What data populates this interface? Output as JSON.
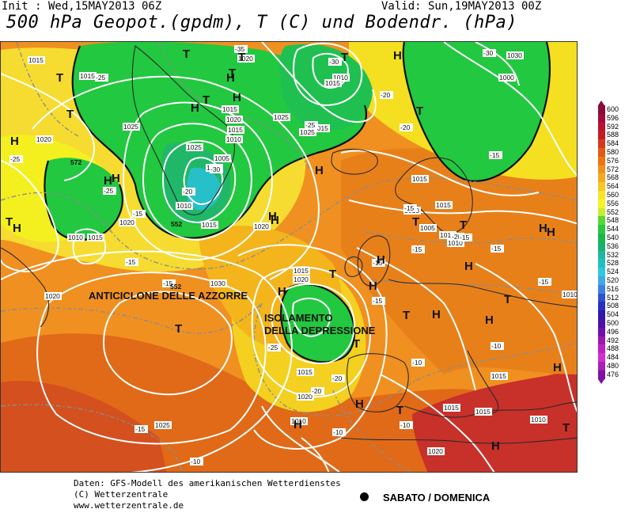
{
  "header": {
    "init": "Init : Wed,15MAY2013 06Z",
    "valid": "Valid: Sun,19MAY2013 00Z",
    "title": "500 hPa Geopot.(gpdm), T (C) und Bodendr. (hPa)"
  },
  "colors": {
    "sea_warm": "#f07814",
    "orange": "#f5a01c",
    "yellow": "#f5f000",
    "light_yellow": "#f8e060",
    "green": "#20c838",
    "green_dark": "#18b030",
    "cyan": "#20c0d8",
    "red": "#d24a1e",
    "deep_red": "#b81a2a",
    "isobar": "#ffffff",
    "coast": "#2a2a2a"
  },
  "legend": {
    "units": "gpdm",
    "levels": [
      {
        "value": "600",
        "color": "#8a0a3a"
      },
      {
        "value": "596",
        "color": "#a00c3c"
      },
      {
        "value": "592",
        "color": "#b8122e"
      },
      {
        "value": "588",
        "color": "#c41c22"
      },
      {
        "value": "584",
        "color": "#d23a1a"
      },
      {
        "value": "580",
        "color": "#e05a14"
      },
      {
        "value": "576",
        "color": "#ec7414"
      },
      {
        "value": "572",
        "color": "#f0901a"
      },
      {
        "value": "568",
        "color": "#f4aa1e"
      },
      {
        "value": "564",
        "color": "#f6c820"
      },
      {
        "value": "560",
        "color": "#f8e428"
      },
      {
        "value": "556",
        "color": "#f4f428"
      },
      {
        "value": "552",
        "color": "#c8ec30"
      },
      {
        "value": "548",
        "color": "#58d838"
      },
      {
        "value": "544",
        "color": "#28c840"
      },
      {
        "value": "540",
        "color": "#18b848"
      },
      {
        "value": "536",
        "color": "#18b070"
      },
      {
        "value": "532",
        "color": "#20b89c"
      },
      {
        "value": "528",
        "color": "#20c0c0"
      },
      {
        "value": "524",
        "color": "#30c8dc"
      },
      {
        "value": "520",
        "color": "#40a8e8"
      },
      {
        "value": "516",
        "color": "#3c80e0"
      },
      {
        "value": "512",
        "color": "#3050d0"
      },
      {
        "value": "508",
        "color": "#2830c0"
      },
      {
        "value": "504",
        "color": "#3018a8"
      },
      {
        "value": "500",
        "color": "#4c10a4"
      },
      {
        "value": "496",
        "color": "#7010a8"
      },
      {
        "value": "492",
        "color": "#9818b0"
      },
      {
        "value": "488",
        "color": "#c020c0"
      },
      {
        "value": "484",
        "color": "#d030d0"
      },
      {
        "value": "480",
        "color": "#a820b8"
      },
      {
        "value": "476",
        "color": "#8010a0"
      }
    ]
  },
  "map": {
    "annotations": [
      "ANTICICLONE DELLE AZZORRE",
      "ISOLAMENTO",
      "DELLA DEPRESSIONE"
    ],
    "pressure_labels": [
      "1015",
      "1015",
      "1020",
      "1025",
      "1015",
      "1020",
      "1015",
      "1010",
      "1005",
      "1000",
      "1025",
      "1010",
      "1015",
      "1020",
      "1020",
      "1025",
      "1015",
      "1010",
      "1030",
      "1020",
      "1025",
      "1020",
      "1015",
      "1010",
      "1005",
      "1015",
      "1020",
      "1010",
      "1025",
      "1020",
      "1015",
      "1010",
      "1010",
      "1015",
      "1015",
      "1015",
      "1010",
      "1010",
      "1030",
      "1000",
      "1010",
      "1015",
      "1015",
      "1020",
      "1015"
    ],
    "temp_labels": [
      "-25",
      "-35",
      "-30",
      "-25",
      "-20",
      "-25",
      "-30",
      "-20",
      "-15",
      "-15",
      "-20",
      "-15",
      "-20",
      "-25",
      "-20",
      "-15",
      "-15",
      "-15",
      "-10",
      "-15",
      "-15",
      "-15",
      "-10",
      "-10",
      "-15",
      "-10",
      "-10",
      "-20",
      "-30",
      "-25",
      "-15",
      "-15"
    ],
    "geopot_labels": [
      "572",
      "552",
      "552"
    ],
    "pressure_systems": [
      "H",
      "T",
      "H",
      "T",
      "H",
      "T",
      "H",
      "T",
      "H",
      "T",
      "H",
      "T",
      "H",
      "T",
      "H",
      "T",
      "H",
      "T",
      "H",
      "H",
      "T",
      "H",
      "T",
      "H",
      "H",
      "T",
      "H",
      "T",
      "H",
      "T",
      "H",
      "H",
      "T",
      "H",
      "T",
      "H",
      "T",
      "H",
      "T",
      "H",
      "H"
    ]
  },
  "footer": {
    "line1": "Daten: GFS-Modell des amerikanischen Wetterdienstes",
    "line2": "(C) Wetterzentrale",
    "line3": "www.wetterzentrale.de",
    "weekend": "SABATO / DOMENICA"
  }
}
